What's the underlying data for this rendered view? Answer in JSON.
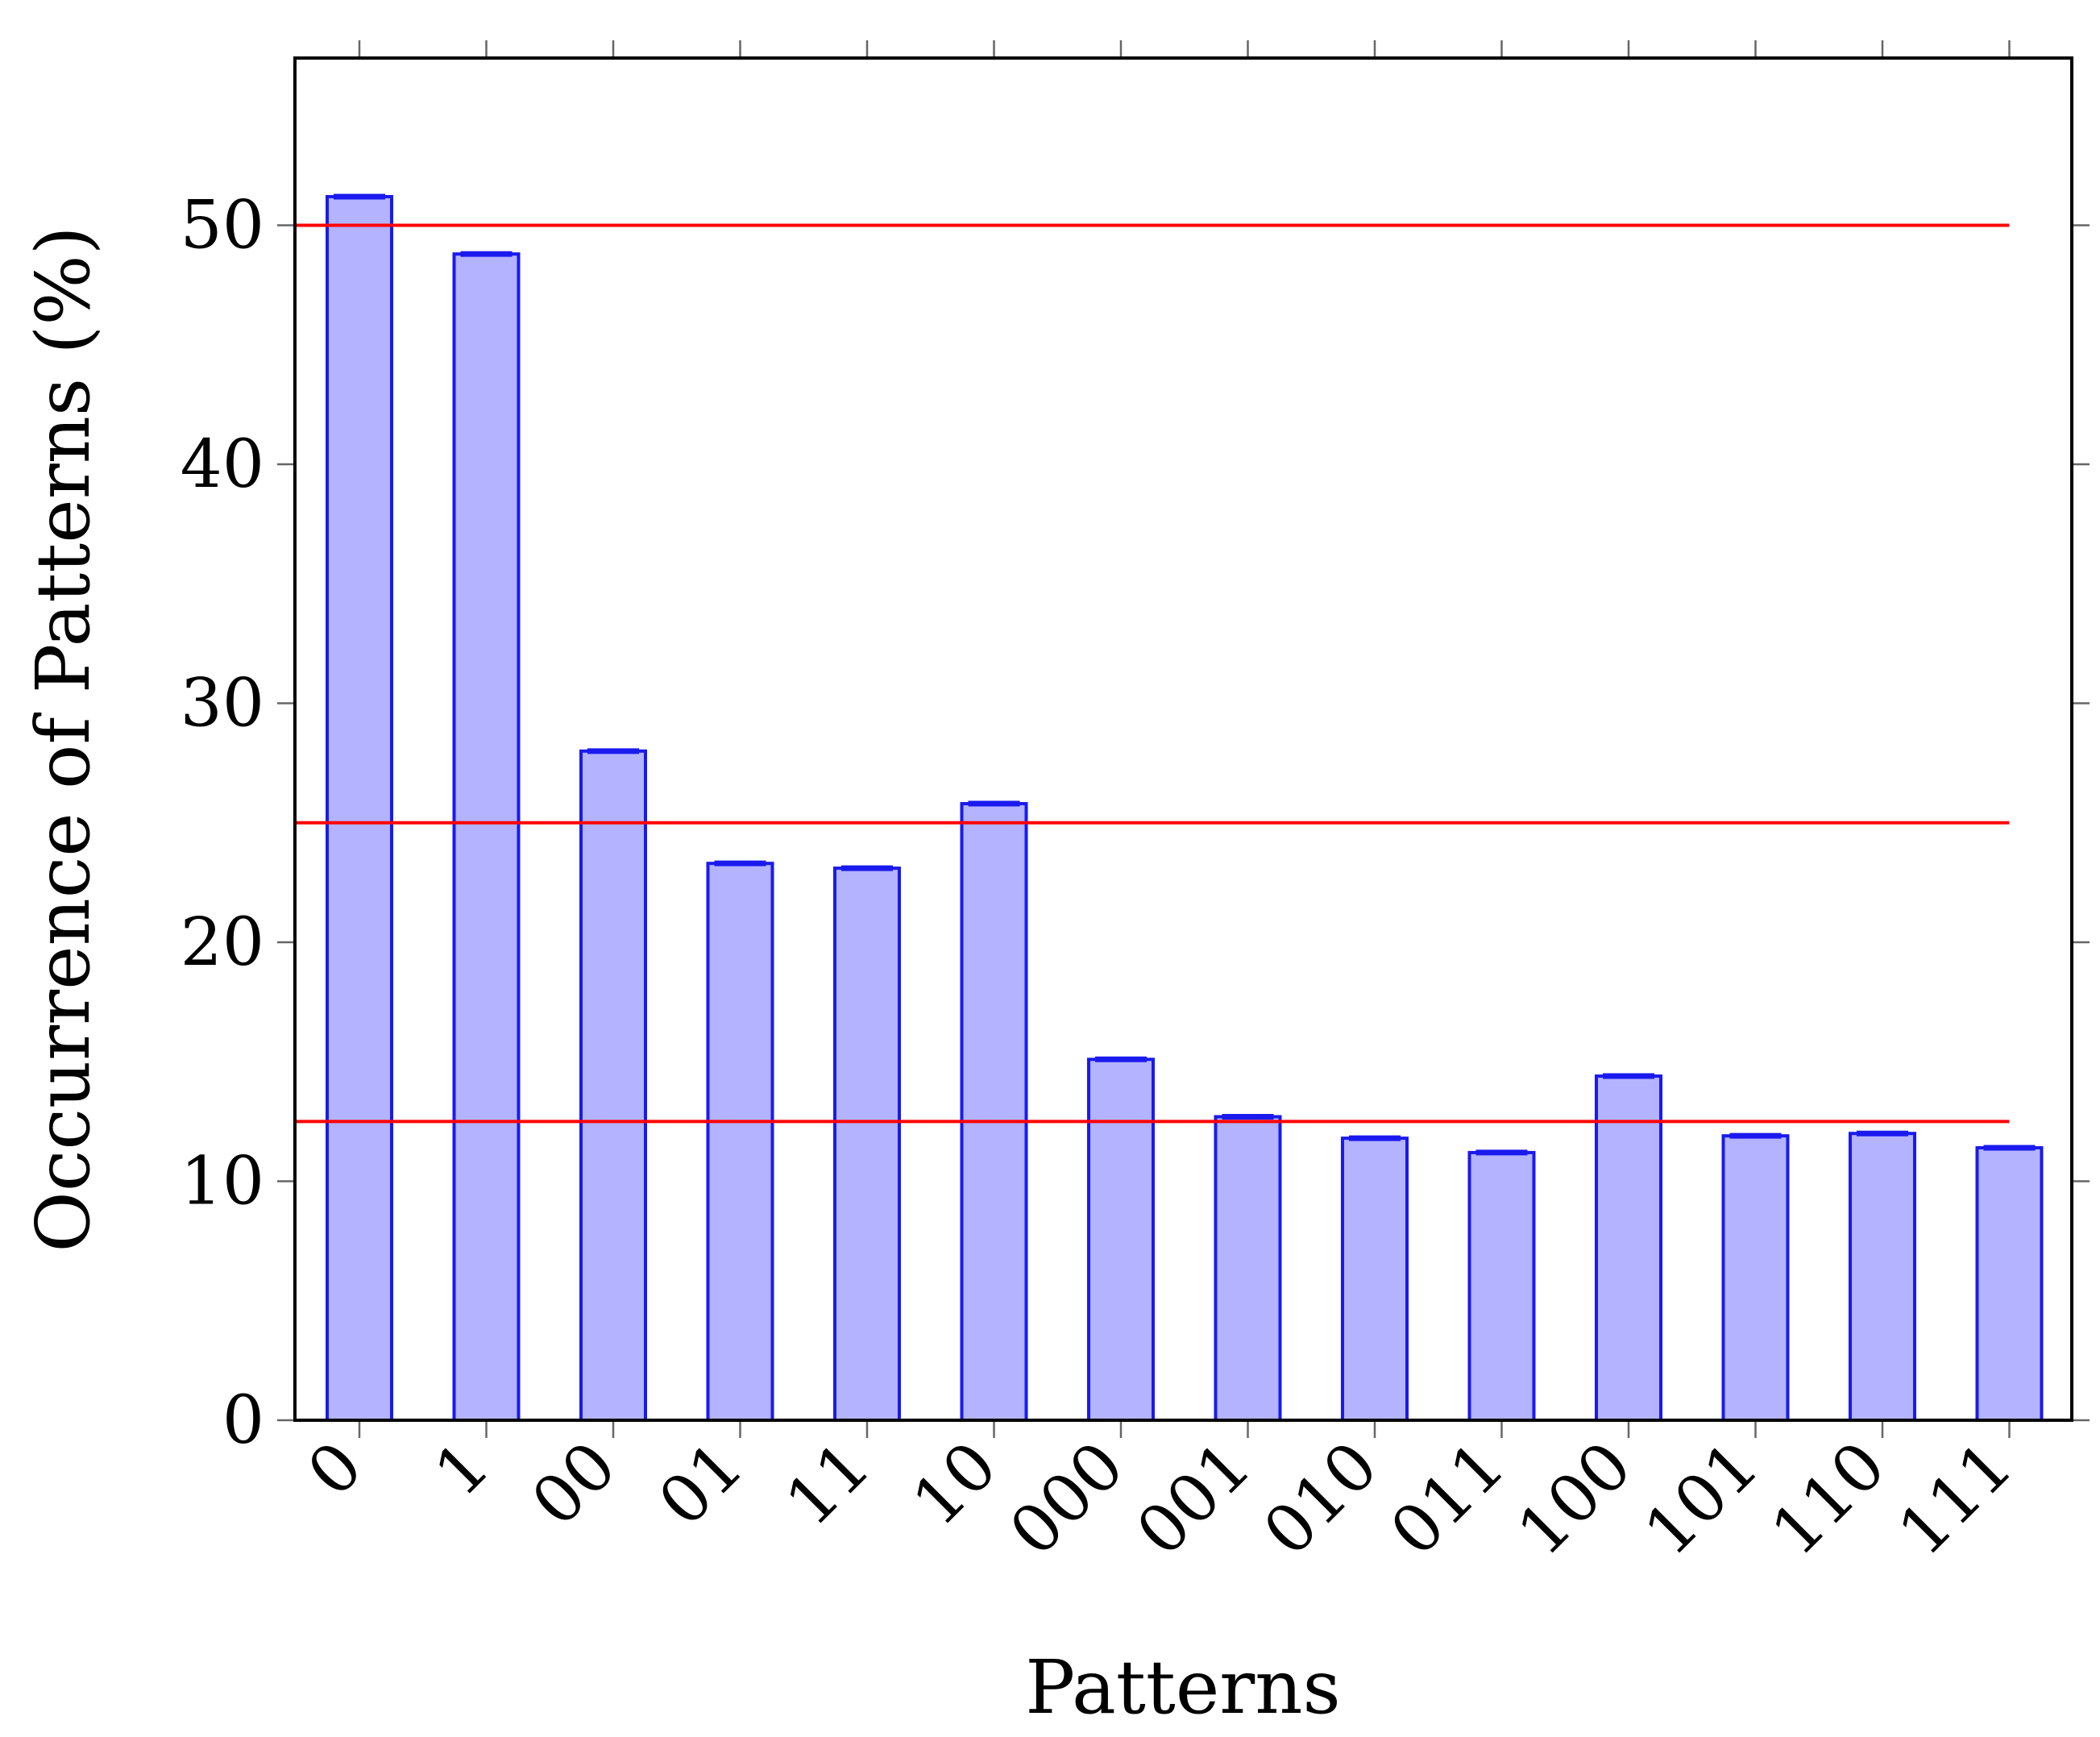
{
  "chart_data": {
    "type": "bar",
    "title": "",
    "xlabel": "Patterns",
    "ylabel": "Occurrence of Patterns (%)",
    "ylim": [
      0,
      57
    ],
    "yticks": [
      0,
      10,
      20,
      30,
      40,
      50
    ],
    "categories": [
      "0",
      "1",
      "00",
      "01",
      "11",
      "10",
      "000",
      "001",
      "010",
      "011",
      "100",
      "101",
      "110",
      "111"
    ],
    "values": [
      51.2,
      48.8,
      28.0,
      23.3,
      23.1,
      25.8,
      15.1,
      12.7,
      11.8,
      11.2,
      14.4,
      11.9,
      12.0,
      11.4
    ],
    "reference_lines": [
      50,
      25,
      12.5
    ],
    "grid": false,
    "colors": {
      "bar_fill": "#b3b3ff",
      "bar_stroke": "#1a1aee",
      "reference_line": "#ff0000",
      "axis": "#000000",
      "tick": "#666666"
    }
  }
}
